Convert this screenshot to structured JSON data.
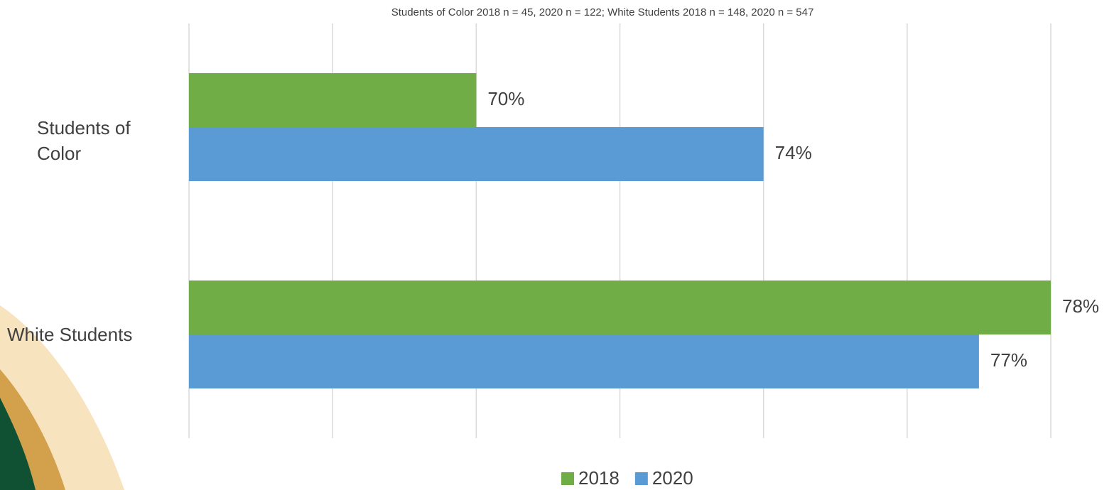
{
  "chart_data": {
    "type": "hbar",
    "title": "Students of Color 2018 n = 45, 2020 n = 122; White Students 2018 n = 148, 2020 n = 547",
    "categories": [
      "Students of Color",
      "White Students"
    ],
    "series": [
      {
        "name": "2018",
        "color": "#70ad47",
        "values": [
          70,
          78
        ],
        "value_labels": [
          "70%",
          "78%"
        ]
      },
      {
        "name": "2020",
        "color": "#5b9bd5",
        "values": [
          74,
          77
        ],
        "value_labels": [
          "74%",
          "77%"
        ]
      }
    ],
    "xlim": [
      66,
      78
    ],
    "xticks": [
      66,
      68,
      70,
      72,
      74,
      76,
      78
    ],
    "grid": true,
    "legend": "bottom"
  }
}
